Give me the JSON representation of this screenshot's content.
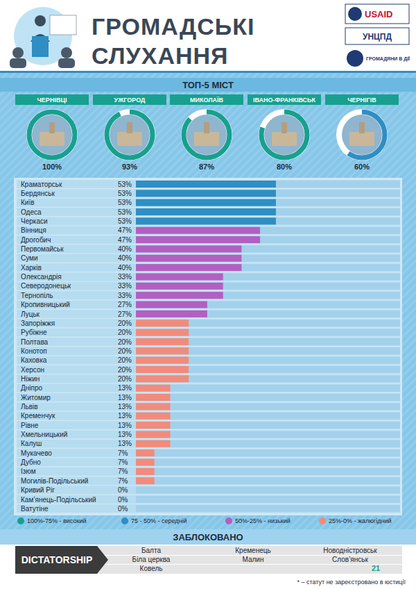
{
  "header": {
    "title_lines": [
      "ГРОМАДСЬКІ",
      "СЛУХАННЯ"
    ],
    "logos": [
      "USAID",
      "УНЦПД",
      "ГРОМАДЯНИ В ДІЇ"
    ]
  },
  "chart_data": [
    {
      "type": "ring",
      "title": "ТОП-5 МІСТ",
      "categories": [
        "ЧЕРНІВЦІ",
        "УЖГОРОД",
        "МИКОЛАЇВ",
        "ІВАНО-ФРАНКІВСЬК",
        "ЧЕРНІГІВ"
      ],
      "values": [
        100,
        93,
        87,
        80,
        60
      ],
      "value_labels": [
        "100%",
        "93%",
        "87%",
        "80%",
        "60%"
      ],
      "colors": [
        "#17a08f",
        "#17a08f",
        "#17a08f",
        "#17a08f",
        "#2f8ec3"
      ],
      "ylim": [
        0,
        100
      ],
      "data_labels": true,
      "tick_labels": "x"
    },
    {
      "type": "bar",
      "orientation": "horizontal",
      "categories": [
        "Краматорськ",
        "Бердянськ",
        "Київ",
        "Одеса",
        "Черкаси",
        "Вінниця",
        "Дрогобич",
        "Первомайськ",
        "Суми",
        "Харків",
        "Олександрія",
        "Северодонецьк",
        "Тернопіль",
        "Кропивницький",
        "Луцьк",
        "Запоріжжя",
        "Рубіжне",
        "Полтава",
        "Конотоп",
        "Каховка",
        "Херсон",
        "Ніжин",
        "Дніпро",
        "Житомир",
        "Львів",
        "Кременчук",
        "Рівне",
        "Хмельницький",
        "Калуш",
        "Мукачево",
        "Дубно",
        "Ізюм",
        "Могилів-Подільський",
        "Кривий Ріг",
        "Кам’янець-Подільський",
        "Ватутіне"
      ],
      "values": [
        53,
        53,
        53,
        53,
        53,
        47,
        47,
        40,
        40,
        40,
        33,
        33,
        33,
        27,
        27,
        20,
        20,
        20,
        20,
        20,
        20,
        20,
        13,
        13,
        13,
        13,
        13,
        13,
        13,
        7,
        7,
        7,
        7,
        0,
        0,
        0
      ],
      "value_labels": [
        "53%",
        "53%",
        "53%",
        "53%",
        "53%",
        "47%",
        "47%",
        "40%",
        "40%",
        "40%",
        "33%",
        "33%",
        "33%",
        "27%",
        "27%",
        "20%",
        "20%",
        "20%",
        "20%",
        "20%",
        "20%",
        "20%",
        "13%",
        "13%",
        "13%",
        "13%",
        "13%",
        "13%",
        "13%",
        "7%",
        "7%",
        "7%",
        "7%",
        "0%",
        "0%",
        "0%"
      ],
      "colors": [
        "#2f8ec3",
        "#2f8ec3",
        "#2f8ec3",
        "#2f8ec3",
        "#2f8ec3",
        "#b35fc2",
        "#b35fc2",
        "#b35fc2",
        "#b35fc2",
        "#b35fc2",
        "#b35fc2",
        "#b35fc2",
        "#b35fc2",
        "#b35fc2",
        "#b35fc2",
        "#f28b7b",
        "#f28b7b",
        "#f28b7b",
        "#f28b7b",
        "#f28b7b",
        "#f28b7b",
        "#f28b7b",
        "#f28b7b",
        "#f28b7b",
        "#f28b7b",
        "#f28b7b",
        "#f28b7b",
        "#f28b7b",
        "#f28b7b",
        "#f28b7b",
        "#f28b7b",
        "#f28b7b",
        "#f28b7b",
        "#f28b7b",
        "#f28b7b",
        "#f28b7b"
      ],
      "xlim": [
        0,
        100
      ],
      "data_labels": true,
      "tick_labels": "y",
      "grid": false
    }
  ],
  "levels": [
    {
      "label": "100%-75% - високий",
      "color": "#17a08f"
    },
    {
      "label": "75 - 50% - середній",
      "color": "#2f8ec3"
    },
    {
      "label": "50%-25% - низький",
      "color": "#b35fc2"
    },
    {
      "label": "25%-0% - жалюгідний",
      "color": "#f28b7b"
    }
  ],
  "blocked": {
    "title": "ЗАБЛОКОВАНО",
    "label": "DICTATORSHIP",
    "cities": [
      "Балта",
      "Кременець",
      "Новодністровськ",
      "Біла церква",
      "Малин",
      "Слов’янськ",
      "Ковель"
    ]
  },
  "page_number": "21",
  "footnote": "* – статут не зареєстровано в юстиції"
}
